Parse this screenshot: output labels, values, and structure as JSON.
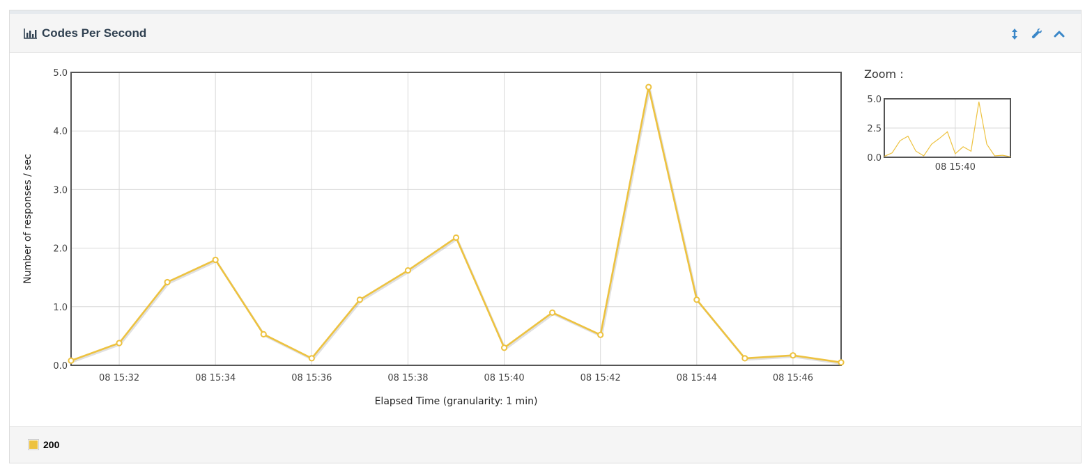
{
  "panel": {
    "title": "Codes Per Second",
    "title_icon": "bar-chart-icon",
    "tools": [
      {
        "name": "expand-vertical-icon"
      },
      {
        "name": "wrench-icon"
      },
      {
        "name": "collapse-chevron-up-icon"
      }
    ],
    "zoom_label": "Zoom :",
    "legend": [
      {
        "label": "200",
        "color": "#EDC240"
      }
    ]
  },
  "colors": {
    "series": "#EDC240",
    "grid": "#d8d8d8",
    "frame": "#545454",
    "icon": "#3a87c8"
  },
  "chart_data": {
    "type": "line",
    "title": "",
    "xlabel": "Elapsed Time (granularity: 1 min)",
    "ylabel": "Number of responses / sec",
    "x": [
      "08 15:31",
      "08 15:32",
      "08 15:33",
      "08 15:34",
      "08 15:35",
      "08 15:36",
      "08 15:37",
      "08 15:38",
      "08 15:39",
      "08 15:40",
      "08 15:41",
      "08 15:42",
      "08 15:43",
      "08 15:44",
      "08 15:45",
      "08 15:46",
      "08 15:47"
    ],
    "x_ticks": [
      "08 15:32",
      "08 15:34",
      "08 15:36",
      "08 15:38",
      "08 15:40",
      "08 15:42",
      "08 15:44",
      "08 15:46"
    ],
    "y_ticks": [
      "0.0",
      "1.0",
      "2.0",
      "3.0",
      "4.0",
      "5.0"
    ],
    "ylim": [
      0,
      5
    ],
    "grid": true,
    "legend_position": "bottom-left",
    "series": [
      {
        "name": "200",
        "values": [
          0.08,
          0.38,
          1.42,
          1.8,
          0.53,
          0.12,
          1.12,
          1.62,
          2.18,
          0.3,
          0.9,
          0.52,
          4.75,
          1.12,
          0.12,
          0.17,
          0.05
        ]
      }
    ],
    "zoom": {
      "y_ticks": [
        "0.0",
        "2.5",
        "5.0"
      ],
      "x_ticks": [
        "08 15:40"
      ],
      "ylim": [
        0,
        5
      ]
    }
  }
}
